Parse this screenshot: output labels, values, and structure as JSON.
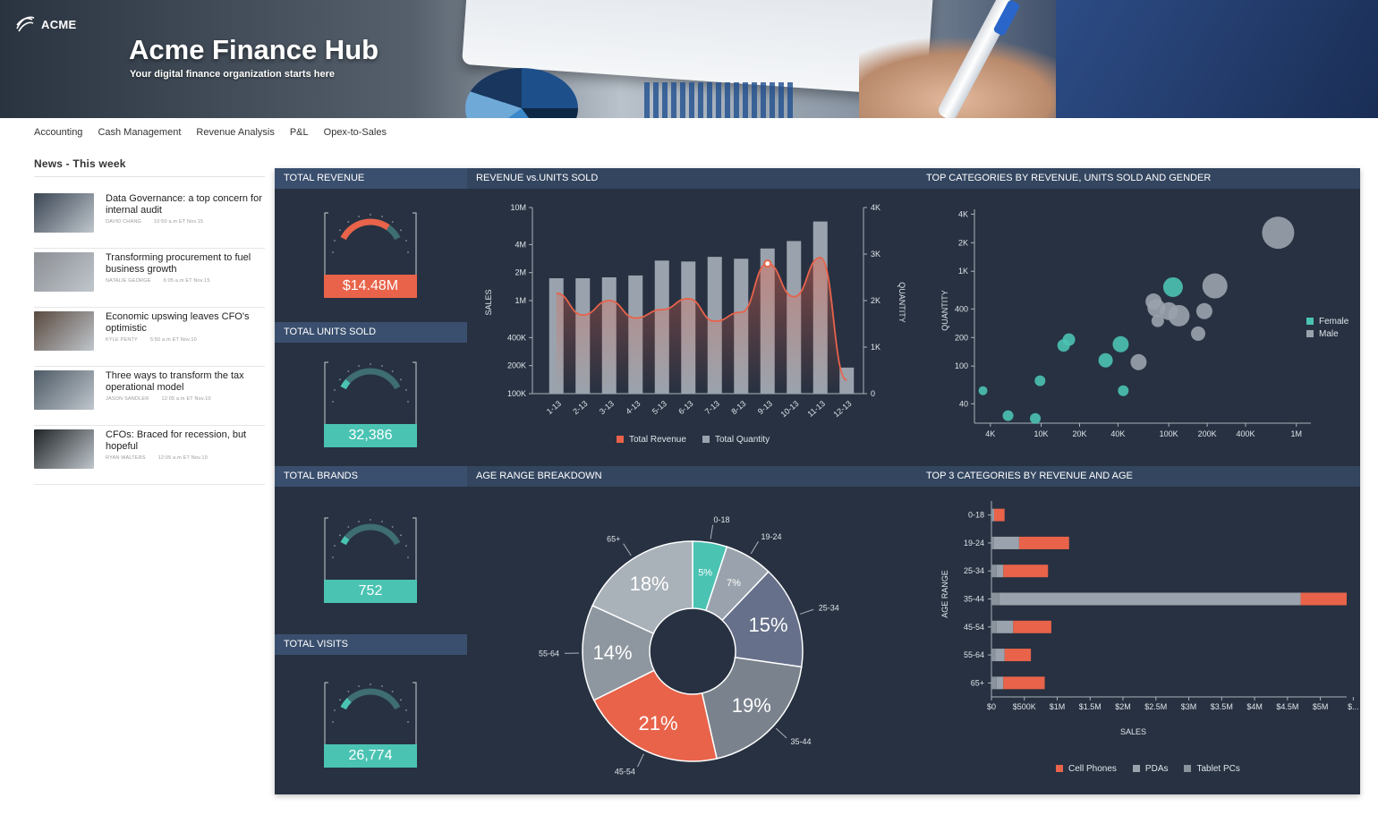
{
  "brand": {
    "name": "ACME"
  },
  "hero": {
    "title": "Acme Finance Hub",
    "subtitle": "Your digital finance organization starts here"
  },
  "nav": {
    "items": [
      "Accounting",
      "Cash Management",
      "Revenue Analysis",
      "P&L",
      "Opex-to-Sales"
    ]
  },
  "news": {
    "title": "News - This week",
    "items": [
      {
        "headline": "Data Governance: a top concern for internal audit",
        "author": "DAVID CHANG",
        "time": "10:50 a.m ET Nov.15",
        "thumb": "#3b4654"
      },
      {
        "headline": "Transforming procurement to fuel business growth",
        "author": "NATALIE GEORGE",
        "time": "6:05 a.m ET Nov.15",
        "thumb": "#8c8f94"
      },
      {
        "headline": "Economic upswing leaves CFO's optimistic",
        "author": "KYLE PENTY",
        "time": "5:50 a.m ET Nov.10",
        "thumb": "#5a4a3f"
      },
      {
        "headline": "Three ways to transform the tax operational model",
        "author": "JASON SANDLER",
        "time": "12:05 a.m ET Nov.10",
        "thumb": "#4d5a66"
      },
      {
        "headline": "CFOs: Braced for recession, but hopeful",
        "author": "RYAN WALTERS",
        "time": "12:05 a.m ET Nov.10",
        "thumb": "#202427"
      }
    ]
  },
  "colors": {
    "accent": "#e8634a",
    "teal": "#4bc3b3",
    "grey": "#9aa3ad",
    "dark": "#273141",
    "header": "#3a4f6e"
  },
  "kpis": [
    {
      "title": "TOTAL REVENUE",
      "value": "$14.48M",
      "color": "#e8634a",
      "level": 0.78
    },
    {
      "title": "TOTAL UNITS SOLD",
      "value": "32,386",
      "color": "#4bc3b3",
      "level": 0.12
    },
    {
      "title": "TOTAL BRANDS",
      "value": "752",
      "color": "#4bc3b3",
      "level": 0.1
    },
    {
      "title": "TOTAL VISITS",
      "value": "26,774",
      "color": "#4bc3b3",
      "level": 0.15
    }
  ],
  "chart_data": [
    {
      "type": "bar",
      "title": "REVENUE vs.UNITS SOLD",
      "ylabel": "SALES",
      "y2label": "QUANTITY",
      "yscale": "log",
      "yticks": [
        "10M",
        "4M",
        "2M",
        "1M",
        "400K",
        "200K",
        "100K"
      ],
      "y2ticks": [
        "4K",
        "3K",
        "2K",
        "1K",
        "0"
      ],
      "categories": [
        "1-13",
        "2-13",
        "3-13",
        "4-13",
        "5-13",
        "6-13",
        "7-13",
        "8-13",
        "9-13",
        "10-13",
        "11-13",
        "12-13"
      ],
      "series": [
        {
          "name": "Total Revenue",
          "type": "line",
          "color": "#e8634a",
          "values": [
            1200000,
            700000,
            1000000,
            650000,
            800000,
            1050000,
            600000,
            750000,
            2500000,
            1100000,
            2900000,
            140000
          ]
        },
        {
          "name": "Total Quantity",
          "type": "bar",
          "color": "#9aa3ad",
          "values": [
            2480,
            2480,
            2500,
            2540,
            2860,
            2840,
            2940,
            2900,
            3120,
            3280,
            3700,
            560
          ]
        }
      ]
    },
    {
      "type": "scatter",
      "title": "TOP CATEGORIES BY REVENUE, UNITS SOLD AND GENDER",
      "xlabel": "",
      "ylabel": "QUANTITY",
      "xscale": "log",
      "yscale": "log",
      "xticks": [
        "4K",
        "10K",
        "20K",
        "40K",
        "100K",
        "200K",
        "400K",
        "1M"
      ],
      "yticks": [
        "4K",
        "2K",
        "1K",
        "400",
        "200",
        "100",
        "40"
      ],
      "series": [
        {
          "name": "Female",
          "color": "#4bc3b3",
          "points": [
            {
              "x": 3500,
              "y": 55,
              "size": 5
            },
            {
              "x": 5500,
              "y": 30,
              "size": 6
            },
            {
              "x": 9000,
              "y": 28,
              "size": 6
            },
            {
              "x": 9800,
              "y": 70,
              "size": 6
            },
            {
              "x": 15000,
              "y": 165,
              "size": 7
            },
            {
              "x": 16500,
              "y": 190,
              "size": 7
            },
            {
              "x": 32000,
              "y": 115,
              "size": 8
            },
            {
              "x": 42000,
              "y": 170,
              "size": 9
            },
            {
              "x": 44000,
              "y": 55,
              "size": 6
            },
            {
              "x": 108000,
              "y": 680,
              "size": 11
            }
          ]
        },
        {
          "name": "Male",
          "color": "#9aa3ad",
          "points": [
            {
              "x": 58000,
              "y": 110,
              "size": 9
            },
            {
              "x": 76000,
              "y": 480,
              "size": 9
            },
            {
              "x": 80000,
              "y": 410,
              "size": 10
            },
            {
              "x": 82000,
              "y": 300,
              "size": 7
            },
            {
              "x": 100000,
              "y": 380,
              "size": 10
            },
            {
              "x": 120000,
              "y": 340,
              "size": 12
            },
            {
              "x": 170000,
              "y": 220,
              "size": 8
            },
            {
              "x": 190000,
              "y": 380,
              "size": 9
            },
            {
              "x": 230000,
              "y": 700,
              "size": 14
            },
            {
              "x": 720000,
              "y": 2550,
              "size": 18
            }
          ]
        }
      ]
    },
    {
      "type": "pie",
      "title": "AGE RANGE BREAKDOWN",
      "slices": [
        {
          "label": "0-18",
          "value": 5,
          "text": "5%",
          "color": "#4bc3b3"
        },
        {
          "label": "19-24",
          "value": 7,
          "text": "7%",
          "color": "#9aa3ad"
        },
        {
          "label": "25-34",
          "value": 15,
          "text": "15%",
          "color": "#66708a"
        },
        {
          "label": "35-44",
          "value": 19,
          "text": "19%",
          "color": "#7a838d"
        },
        {
          "label": "45-54",
          "value": 21,
          "text": "21%",
          "color": "#e8634a"
        },
        {
          "label": "55-64",
          "value": 14,
          "text": "14%",
          "color": "#8e979f"
        },
        {
          "label": "65+",
          "value": 18,
          "text": "18%",
          "color": "#a9b1b9"
        }
      ]
    },
    {
      "type": "bar",
      "orientation": "horizontal",
      "stacked": true,
      "title": "TOP 3 CATEGORIES BY REVENUE AND AGE",
      "xlabel": "SALES",
      "ylabel": "AGE RANGE",
      "xticks": [
        "$0",
        "$500K",
        "$1M",
        "$1.5M",
        "$2M",
        "$2.5M",
        "$3M",
        "$3.5M",
        "$4M",
        "$4.5M",
        "$5M",
        "$..."
      ],
      "categories": [
        "0-18",
        "19-24",
        "25-34",
        "35-44",
        "45-54",
        "55-64",
        "65+"
      ],
      "series": [
        {
          "name": "Cell Phones",
          "color": "#e8634a",
          "values": [
            160000,
            760000,
            680000,
            700000,
            580000,
            400000,
            630000
          ]
        },
        {
          "name": "PDAs",
          "color": "#9aa3ad",
          "values": [
            20000,
            380000,
            100000,
            4580000,
            250000,
            140000,
            100000
          ]
        },
        {
          "name": "Tablet PCs",
          "color": "#8a939c",
          "values": [
            20000,
            40000,
            80000,
            120000,
            80000,
            60000,
            80000
          ]
        }
      ]
    }
  ]
}
